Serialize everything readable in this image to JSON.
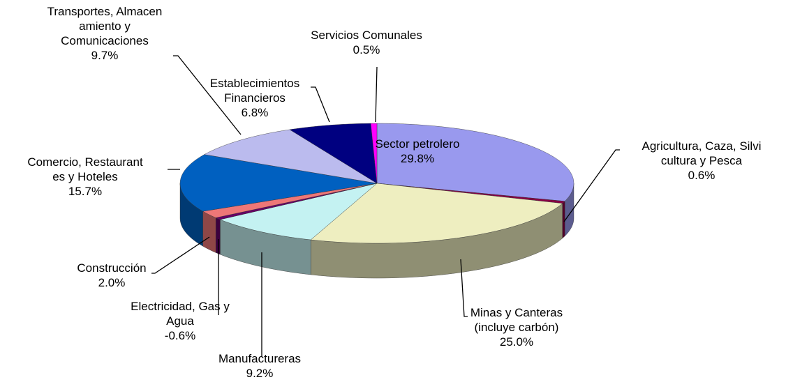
{
  "chart_data": {
    "type": "pie3d",
    "categories": [
      "Sector petrolero",
      "Agricultura, Caza, Silvi\ncultura y Pesca",
      "Minas y Canteras\n(incluye carbón)",
      "Manufactureras",
      "Electricidad, Gas y\nAgua",
      "Construcción",
      "Comercio, Restaurant\nes y Hoteles",
      "Transportes, Almacen\namiento y\nComunicaciones",
      "Establecimientos\nFinancieros",
      "Servicios Comunales"
    ],
    "values": [
      29.8,
      0.6,
      25.0,
      9.2,
      -0.6,
      2.0,
      15.7,
      9.7,
      6.8,
      0.5
    ],
    "value_labels": [
      "29.8%",
      "0.6%",
      "25.0%",
      "9.2%",
      "-0.6%",
      "2.0%",
      "15.7%",
      "9.7%",
      "6.8%",
      "0.5%"
    ],
    "colors": [
      "#9999ee",
      "#880044",
      "#eeeec0",
      "#c4f2f2",
      "#660066",
      "#ee7777",
      "#0060c0",
      "#bbbbee",
      "#000080",
      "#ff00ff"
    ]
  }
}
